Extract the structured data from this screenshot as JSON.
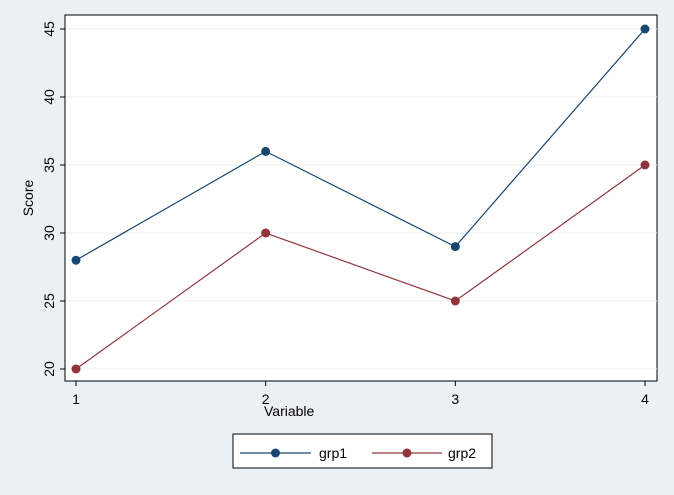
{
  "chart_data": {
    "type": "line",
    "x": [
      1,
      2,
      3,
      4
    ],
    "series": [
      {
        "name": "grp1",
        "values": [
          28,
          36,
          29,
          45
        ],
        "color": "#1a476f"
      },
      {
        "name": "grp2",
        "values": [
          20,
          30,
          25,
          35
        ],
        "color": "#90353b"
      }
    ],
    "xlabel": "Variable",
    "ylabel": "Score",
    "xticks": [
      "1",
      "2",
      "3",
      "4"
    ],
    "yticks": [
      "20",
      "25",
      "30",
      "35",
      "40",
      "45"
    ],
    "xlim": [
      1,
      4
    ],
    "ylim": [
      20,
      45
    ],
    "grid": true,
    "legend": "bottom-center",
    "background_color": "#eaf0f3",
    "plot_background_color": "#ffffff"
  }
}
